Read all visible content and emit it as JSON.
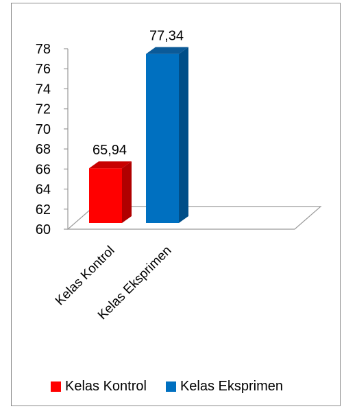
{
  "chart_data": {
    "type": "bar",
    "categories": [
      "Kelas Kontrol",
      "Kelas Eksprimen"
    ],
    "values": [
      65.94,
      77.34
    ],
    "value_labels": [
      "65,94",
      "77,34"
    ],
    "ylim": [
      60,
      78
    ],
    "yticks": [
      "60",
      "62",
      "64",
      "66",
      "68",
      "70",
      "72",
      "74",
      "76",
      "78"
    ],
    "colors": [
      "#ff0000",
      "#0070c0"
    ],
    "side_colors": [
      "#b00000",
      "#004e88"
    ],
    "top_colors": [
      "#c80000",
      "#0b5a98"
    ],
    "legend": [
      "Kelas Kontrol",
      "Kelas Eksprimen"
    ],
    "legend_position": "bottom",
    "style": "3d-column",
    "grid": false
  }
}
